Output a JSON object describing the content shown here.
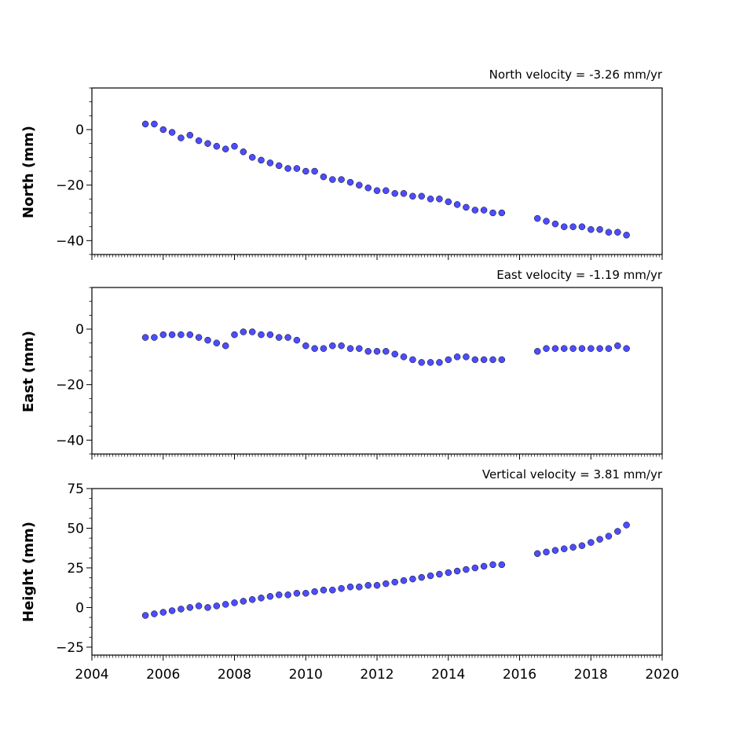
{
  "chart_data": [
    {
      "type": "scatter",
      "title": "North velocity = -3.26 mm/yr",
      "ylabel": "North (mm)",
      "xlim": [
        2004,
        2020
      ],
      "ylim": [
        -45,
        15
      ],
      "yticks": [
        -40,
        -20,
        0
      ],
      "ytick_labels": [
        "−40",
        "−20",
        "0"
      ],
      "xtick_labels_shown": false,
      "grid": false,
      "marker_color": "#4d4dff",
      "marker_edge": "#000000",
      "series": [
        {
          "x": [
            2005.5,
            2005.75,
            2006.0,
            2006.25,
            2006.5,
            2006.75,
            2007.0,
            2007.25,
            2007.5,
            2007.75,
            2008.0,
            2008.25,
            2008.5,
            2008.75,
            2009.0,
            2009.25,
            2009.5,
            2009.75,
            2010.0,
            2010.25,
            2010.5,
            2010.75,
            2011.0,
            2011.25,
            2011.5,
            2011.75,
            2012.0,
            2012.25,
            2012.5,
            2012.75,
            2013.0,
            2013.25,
            2013.5,
            2013.75,
            2014.0,
            2014.25,
            2014.5,
            2014.75,
            2015.0,
            2015.25,
            2015.5,
            2016.5,
            2016.75,
            2017.0,
            2017.25,
            2017.5,
            2017.75,
            2018.0,
            2018.25,
            2018.5,
            2018.75,
            2019.0
          ],
          "y": [
            2,
            2,
            0,
            -1,
            -3,
            -2,
            -4,
            -5,
            -6,
            -7,
            -6,
            -8,
            -10,
            -11,
            -12,
            -13,
            -14,
            -14,
            -15,
            -15,
            -17,
            -18,
            -18,
            -19,
            -20,
            -21,
            -22,
            -22,
            -23,
            -23,
            -24,
            -24,
            -25,
            -25,
            -26,
            -27,
            -28,
            -29,
            -29,
            -30,
            -30,
            -32,
            -33,
            -34,
            -35,
            -35,
            -35,
            -36,
            -36,
            -37,
            -37,
            -38
          ]
        }
      ]
    },
    {
      "type": "scatter",
      "title": "East velocity = -1.19 mm/yr",
      "ylabel": "East (mm)",
      "xlim": [
        2004,
        2020
      ],
      "ylim": [
        -45,
        15
      ],
      "yticks": [
        -40,
        -20,
        0
      ],
      "ytick_labels": [
        "−40",
        "−20",
        "0"
      ],
      "xtick_labels_shown": false,
      "grid": false,
      "marker_color": "#4d4dff",
      "marker_edge": "#000000",
      "series": [
        {
          "x": [
            2005.5,
            2005.75,
            2006.0,
            2006.25,
            2006.5,
            2006.75,
            2007.0,
            2007.25,
            2007.5,
            2007.75,
            2008.0,
            2008.25,
            2008.5,
            2008.75,
            2009.0,
            2009.25,
            2009.5,
            2009.75,
            2010.0,
            2010.25,
            2010.5,
            2010.75,
            2011.0,
            2011.25,
            2011.5,
            2011.75,
            2012.0,
            2012.25,
            2012.5,
            2012.75,
            2013.0,
            2013.25,
            2013.5,
            2013.75,
            2014.0,
            2014.25,
            2014.5,
            2014.75,
            2015.0,
            2015.25,
            2015.5,
            2016.5,
            2016.75,
            2017.0,
            2017.25,
            2017.5,
            2017.75,
            2018.0,
            2018.25,
            2018.5,
            2018.75,
            2019.0
          ],
          "y": [
            -3,
            -3,
            -2,
            -2,
            -2,
            -2,
            -3,
            -4,
            -5,
            -6,
            -2,
            -1,
            -1,
            -2,
            -2,
            -3,
            -3,
            -4,
            -6,
            -7,
            -7,
            -6,
            -6,
            -7,
            -7,
            -8,
            -8,
            -8,
            -9,
            -10,
            -11,
            -12,
            -12,
            -12,
            -11,
            -10,
            -10,
            -11,
            -11,
            -11,
            -11,
            -8,
            -7,
            -7,
            -7,
            -7,
            -7,
            -7,
            -7,
            -7,
            -6,
            -7
          ]
        }
      ]
    },
    {
      "type": "scatter",
      "title": "Vertical velocity = 3.81 mm/yr",
      "ylabel": "Height (mm)",
      "xlabel": "",
      "xlim": [
        2004,
        2020
      ],
      "ylim": [
        -30,
        75
      ],
      "yticks": [
        -25,
        0,
        25,
        50,
        75
      ],
      "ytick_labels": [
        "−25",
        "0",
        "25",
        "50",
        "75"
      ],
      "xticks": [
        2004,
        2006,
        2008,
        2010,
        2012,
        2014,
        2016,
        2018,
        2020
      ],
      "xtick_labels": [
        "2004",
        "2006",
        "2008",
        "2010",
        "2012",
        "2014",
        "2016",
        "2018",
        "2020"
      ],
      "grid": false,
      "marker_color": "#4d4dff",
      "marker_edge": "#000000",
      "series": [
        {
          "x": [
            2005.5,
            2005.75,
            2006.0,
            2006.25,
            2006.5,
            2006.75,
            2007.0,
            2007.25,
            2007.5,
            2007.75,
            2008.0,
            2008.25,
            2008.5,
            2008.75,
            2009.0,
            2009.25,
            2009.5,
            2009.75,
            2010.0,
            2010.25,
            2010.5,
            2010.75,
            2011.0,
            2011.25,
            2011.5,
            2011.75,
            2012.0,
            2012.25,
            2012.5,
            2012.75,
            2013.0,
            2013.25,
            2013.5,
            2013.75,
            2014.0,
            2014.25,
            2014.5,
            2014.75,
            2015.0,
            2015.25,
            2015.5,
            2016.5,
            2016.75,
            2017.0,
            2017.25,
            2017.5,
            2017.75,
            2018.0,
            2018.25,
            2018.5,
            2018.75,
            2019.0
          ],
          "y": [
            -5,
            -4,
            -3,
            -2,
            -1,
            0,
            1,
            0,
            1,
            2,
            3,
            4,
            5,
            6,
            7,
            8,
            8,
            9,
            9,
            10,
            11,
            11,
            12,
            13,
            13,
            14,
            14,
            15,
            16,
            17,
            18,
            19,
            20,
            21,
            22,
            23,
            24,
            25,
            26,
            27,
            27,
            34,
            35,
            36,
            37,
            38,
            39,
            41,
            43,
            45,
            48,
            52
          ]
        }
      ]
    }
  ]
}
